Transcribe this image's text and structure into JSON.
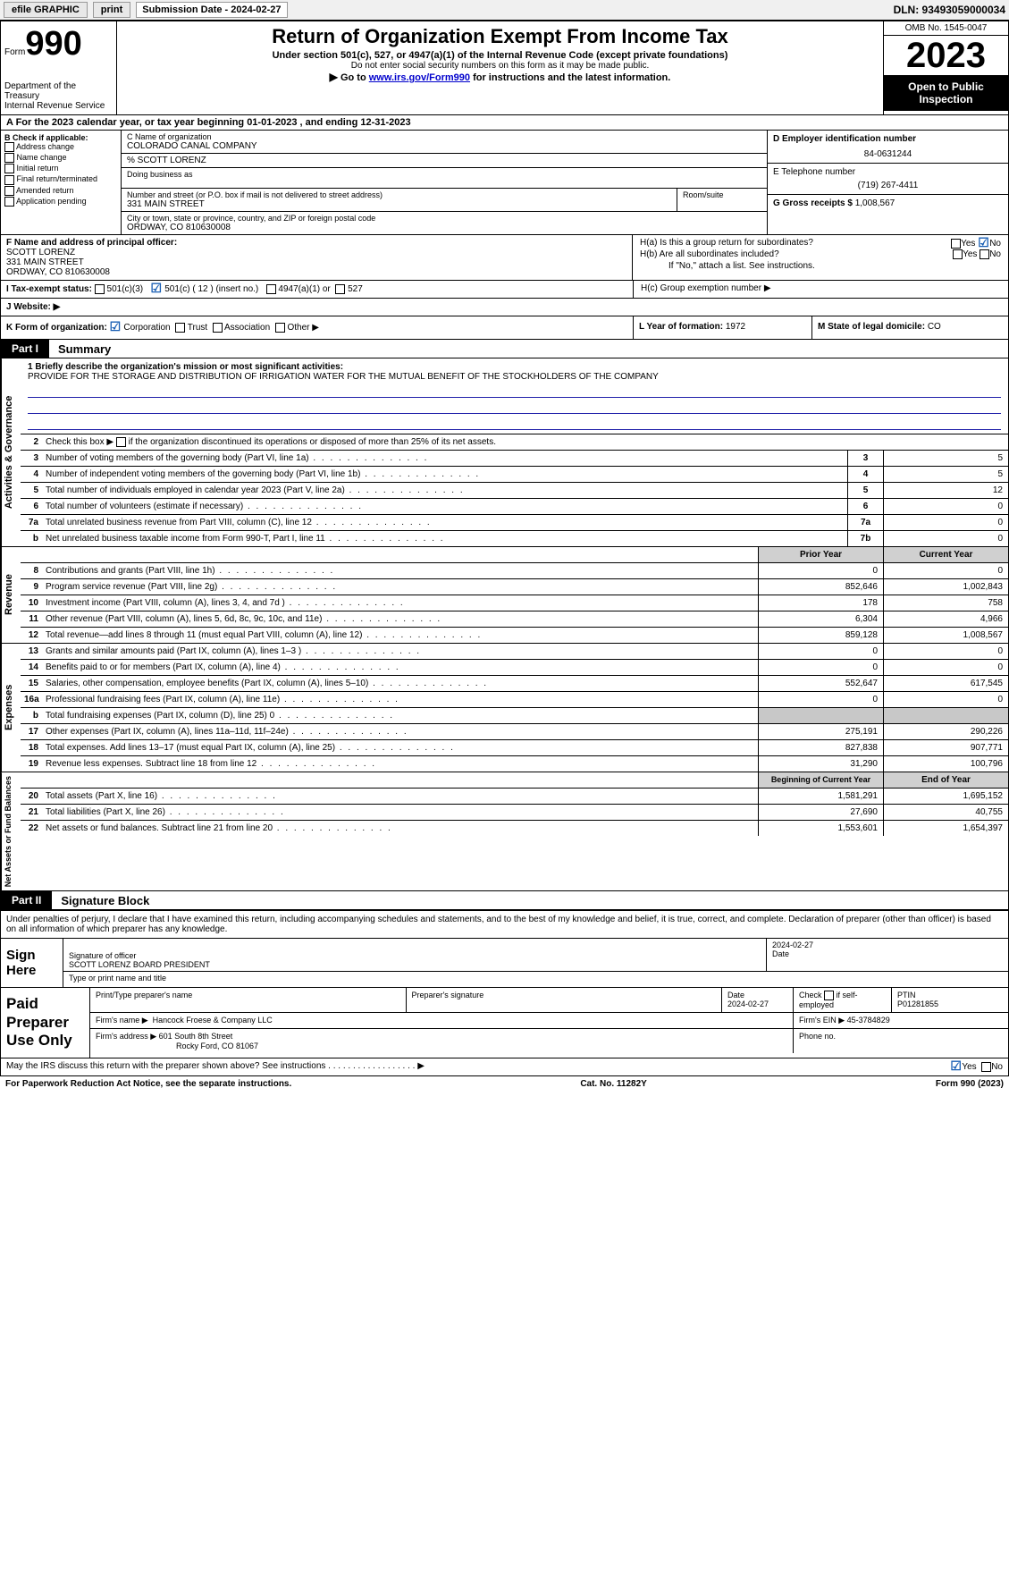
{
  "top": {
    "efile": "efile GRAPHIC",
    "print": "print",
    "sub_label": "Submission Date - 2024-02-27",
    "dln": "DLN: 93493059000034"
  },
  "header": {
    "form_prefix": "Form",
    "form_no": "990",
    "dept1": "Department of the Treasury",
    "dept2": "Internal Revenue Service",
    "title": "Return of Organization Exempt From Income Tax",
    "sub1": "Under section 501(c), 527, or 4947(a)(1) of the Internal Revenue Code (except private foundations)",
    "sub2": "Do not enter social security numbers on this form as it may be made public.",
    "sub3_pre": "Go to ",
    "sub3_link": "www.irs.gov/Form990",
    "sub3_post": " for instructions and the latest information.",
    "omb": "OMB No. 1545-0047",
    "year": "2023",
    "open": "Open to Public Inspection"
  },
  "rowA": "A  For the 2023 calendar year, or tax year beginning 01-01-2023     , and ending 12-31-2023",
  "colB": {
    "hdr": "B Check if applicable:",
    "c1": "Address change",
    "c2": "Name change",
    "c3": "Initial return",
    "c4": "Final return/terminated",
    "c5": "Amended return",
    "c6": "Application pending"
  },
  "nameBlock": {
    "lbl1": "C Name of organization",
    "org": "COLORADO CANAL COMPANY",
    "care": "% SCOTT LORENZ",
    "dba_lbl": "Doing business as",
    "addr_lbl": "Number and street (or P.O. box if mail is not delivered to street address)",
    "addr": "331 MAIN STREET",
    "suite_lbl": "Room/suite",
    "city_lbl": "City or town, state or province, country, and ZIP or foreign postal code",
    "city": "ORDWAY, CO  810630008"
  },
  "colD": {
    "ein_lbl": "D Employer identification number",
    "ein": "84-0631244",
    "tel_lbl": "E Telephone number",
    "tel": "(719) 267-4411",
    "gross_lbl": "G Gross receipts $",
    "gross": "1,008,567"
  },
  "officer": {
    "lbl": "F Name and address of principal officer:",
    "name": "SCOTT LORENZ",
    "addr1": "331 MAIN STREET",
    "addr2": "ORDWAY, CO  810630008"
  },
  "groupH": {
    "ha": "H(a)  Is this a group return for subordinates?",
    "hb": "H(b)  Are all subordinates included?",
    "hb_note": "If \"No,\" attach a list. See instructions.",
    "hc": "H(c)  Group exemption number ▶"
  },
  "status": {
    "lbl": "I    Tax-exempt status:",
    "o1": "501(c)(3)",
    "o2": "501(c) ( 12 ) (insert no.)",
    "o3": "4947(a)(1) or",
    "o4": "527"
  },
  "website": {
    "lbl": "J    Website: ▶"
  },
  "rowK": {
    "k": "K Form of organization:",
    "corp": "Corporation",
    "trust": "Trust",
    "assoc": "Association",
    "other": "Other ▶",
    "l_lbl": "L Year of formation:",
    "l_val": "1972",
    "m_lbl": "M State of legal domicile:",
    "m_val": "CO"
  },
  "part1": {
    "label": "Part I",
    "title": "Summary"
  },
  "mission": {
    "lbl": "1   Briefly describe the organization's mission or most significant activities:",
    "text": "PROVIDE FOR THE STORAGE AND DISTRIBUTION OF IRRIGATION WATER FOR THE MUTUAL BENEFIT OF THE STOCKHOLDERS OF THE COMPANY"
  },
  "line2": "Check this box ▶         if the organization discontinued its operations or disposed of more than 25% of its net assets.",
  "lines_ag": [
    {
      "n": "3",
      "t": "Number of voting members of the governing body (Part VI, line 1a)",
      "k": "3",
      "v": "5"
    },
    {
      "n": "4",
      "t": "Number of independent voting members of the governing body (Part VI, line 1b)",
      "k": "4",
      "v": "5"
    },
    {
      "n": "5",
      "t": "Total number of individuals employed in calendar year 2023 (Part V, line 2a)",
      "k": "5",
      "v": "12"
    },
    {
      "n": "6",
      "t": "Total number of volunteers (estimate if necessary)",
      "k": "6",
      "v": "0"
    },
    {
      "n": "7a",
      "t": "Total unrelated business revenue from Part VIII, column (C), line 12",
      "k": "7a",
      "v": "0"
    },
    {
      "n": "b",
      "t": "Net unrelated business taxable income from Form 990-T, Part I, line 11",
      "k": "7b",
      "v": "0"
    }
  ],
  "rev_hdr": {
    "prior": "Prior Year",
    "current": "Current Year"
  },
  "rev_rows": [
    {
      "n": "8",
      "t": "Contributions and grants (Part VIII, line 1h)",
      "p": "0",
      "c": "0"
    },
    {
      "n": "9",
      "t": "Program service revenue (Part VIII, line 2g)",
      "p": "852,646",
      "c": "1,002,843"
    },
    {
      "n": "10",
      "t": "Investment income (Part VIII, column (A), lines 3, 4, and 7d )",
      "p": "178",
      "c": "758"
    },
    {
      "n": "11",
      "t": "Other revenue (Part VIII, column (A), lines 5, 6d, 8c, 9c, 10c, and 11e)",
      "p": "6,304",
      "c": "4,966"
    },
    {
      "n": "12",
      "t": "Total revenue—add lines 8 through 11 (must equal Part VIII, column (A), line 12)",
      "p": "859,128",
      "c": "1,008,567"
    }
  ],
  "exp_rows": [
    {
      "n": "13",
      "t": "Grants and similar amounts paid (Part IX, column (A), lines 1–3 )",
      "p": "0",
      "c": "0"
    },
    {
      "n": "14",
      "t": "Benefits paid to or for members (Part IX, column (A), line 4)",
      "p": "0",
      "c": "0"
    },
    {
      "n": "15",
      "t": "Salaries, other compensation, employee benefits (Part IX, column (A), lines 5–10)",
      "p": "552,647",
      "c": "617,545"
    },
    {
      "n": "16a",
      "t": "Professional fundraising fees (Part IX, column (A), line 11e)",
      "p": "0",
      "c": "0"
    },
    {
      "n": "b",
      "t": "Total fundraising expenses (Part IX, column (D), line 25) 0",
      "p": "gray",
      "c": "gray"
    },
    {
      "n": "17",
      "t": "Other expenses (Part IX, column (A), lines 11a–11d, 11f–24e)",
      "p": "275,191",
      "c": "290,226"
    },
    {
      "n": "18",
      "t": "Total expenses. Add lines 13–17 (must equal Part IX, column (A), line 25)",
      "p": "827,838",
      "c": "907,771"
    },
    {
      "n": "19",
      "t": "Revenue less expenses. Subtract line 18 from line 12",
      "p": "31,290",
      "c": "100,796"
    }
  ],
  "net_hdr": {
    "begin": "Beginning of Current Year",
    "end": "End of Year"
  },
  "net_rows": [
    {
      "n": "20",
      "t": "Total assets (Part X, line 16)",
      "p": "1,581,291",
      "c": "1,695,152"
    },
    {
      "n": "21",
      "t": "Total liabilities (Part X, line 26)",
      "p": "27,690",
      "c": "40,755"
    },
    {
      "n": "22",
      "t": "Net assets or fund balances. Subtract line 21 from line 20",
      "p": "1,553,601",
      "c": "1,654,397"
    }
  ],
  "vtabs": {
    "ag": "Activities & Governance",
    "rev": "Revenue",
    "exp": "Expenses",
    "net": "Net Assets or Fund Balances"
  },
  "part2": {
    "label": "Part II",
    "title": "Signature Block"
  },
  "sig_decl": "Under penalties of perjury, I declare that I have examined this return, including accompanying schedules and statements, and to the best of my knowledge and belief, it is true, correct, and complete. Declaration of preparer (other than officer) is based on all information of which preparer has any knowledge.",
  "sign": {
    "here": "Sign Here",
    "sig_lbl": "Signature of officer",
    "name": "SCOTT LORENZ  BOARD PRESIDENT",
    "type_lbl": "Type or print name and title",
    "date_lbl": "Date",
    "date": "2024-02-27"
  },
  "paid": {
    "label": "Paid Preparer Use Only",
    "prep_name_lbl": "Print/Type preparer's name",
    "prep_sig_lbl": "Preparer's signature",
    "date_lbl": "Date",
    "date": "2024-02-27",
    "check_lbl": "Check         if self-employed",
    "ptin_lbl": "PTIN",
    "ptin": "P01281855",
    "firm_name_lbl": "Firm's name    ▶",
    "firm_name": "Hancock Froese & Company LLC",
    "firm_ein_lbl": "Firm's EIN ▶",
    "firm_ein": "45-3784829",
    "firm_addr_lbl": "Firm's address ▶",
    "firm_addr1": "601 South 8th Street",
    "firm_addr2": "Rocky Ford, CO  81067",
    "phone_lbl": "Phone no."
  },
  "discuss": "May the IRS discuss this return with the preparer shown above? See instructions .   .   .   .   .   .   .   .   .   .   .   .   .   .   .   .   .   .   ▶",
  "footer": {
    "left": "For Paperwork Reduction Act Notice, see the separate instructions.",
    "mid": "Cat. No. 11282Y",
    "right": "Form 990 (2023)"
  }
}
